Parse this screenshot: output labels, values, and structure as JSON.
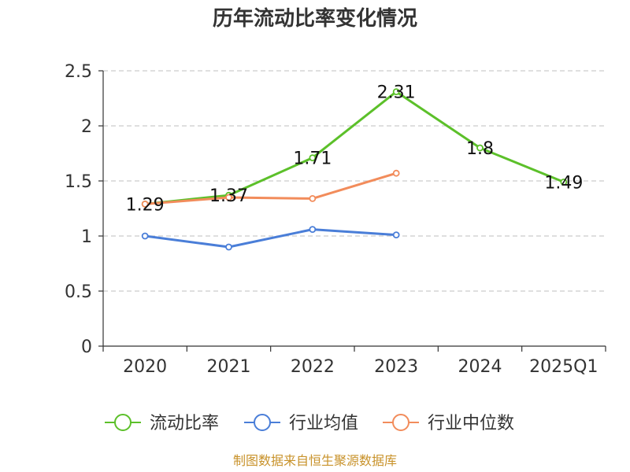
{
  "chart_data": {
    "type": "line",
    "title": "历年流动比率变化情况",
    "categories": [
      "2020",
      "2021",
      "2022",
      "2023",
      "2024",
      "2025Q1"
    ],
    "ylim": [
      0,
      2.5
    ],
    "yticks": [
      "0",
      "0.5",
      "1",
      "1.5",
      "2",
      "2.5"
    ],
    "ytick_values": [
      0,
      0.5,
      1,
      1.5,
      2,
      2.5
    ],
    "grid": true,
    "legend_position": "bottom",
    "series": [
      {
        "name": "流动比率",
        "color": "#5cc02a",
        "values": [
          1.29,
          1.37,
          1.71,
          2.31,
          1.8,
          1.49
        ],
        "labels": [
          "1.29",
          "1.37",
          "1.71",
          "2.31",
          "1.8",
          "1.49"
        ],
        "show_labels": true
      },
      {
        "name": "行业均值",
        "color": "#4a7ed8",
        "values": [
          1.0,
          0.9,
          1.06,
          1.01,
          null,
          null
        ],
        "show_labels": false
      },
      {
        "name": "行业中位数",
        "color": "#f28c5b",
        "values": [
          1.29,
          1.35,
          1.34,
          1.57,
          null,
          null
        ],
        "show_labels": false
      }
    ],
    "source": "制图数据来自恒生聚源数据库"
  }
}
